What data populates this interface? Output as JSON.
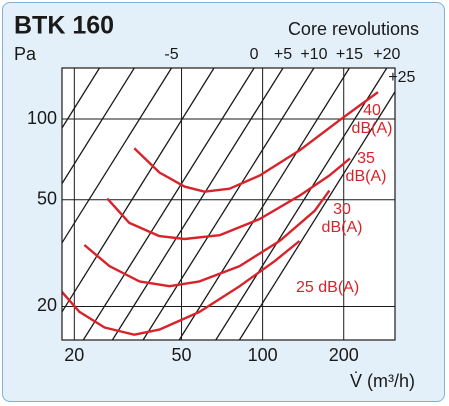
{
  "chart_data": {
    "type": "line",
    "title": "BTK 160",
    "y_label": "Pa",
    "x_label": "V̇ (m³/h)",
    "annotation": "Core revolutions",
    "log_x": true,
    "log_y": true,
    "grid": true,
    "xlim": [
      18,
      310
    ],
    "ylim": [
      15,
      155
    ],
    "xticks": [
      20,
      50,
      100,
      200
    ],
    "yticks": [
      20,
      50,
      100
    ],
    "series": [
      {
        "name": "40 dB(A)",
        "color": "#d8232a",
        "x": [
          33.4,
          41.4,
          51.3,
          60.9,
          75.4,
          97.5,
          137,
          193,
          268
        ],
        "values": [
          77.8,
          63.2,
          56.0,
          53.6,
          55.0,
          61.6,
          76.4,
          99,
          126
        ]
      },
      {
        "name": "35 dB(A)",
        "color": "#d8232a",
        "x": [
          26.5,
          32.0,
          41.4,
          51.3,
          69.2,
          97.5,
          137,
          177,
          211
        ],
        "values": [
          50.5,
          41.0,
          36.6,
          35.7,
          36.9,
          42.4,
          51.8,
          61.6,
          71.3
        ]
      },
      {
        "name": "30 dB(A)",
        "color": "#d8232a",
        "x": [
          21.8,
          27.0,
          34.9,
          45.1,
          58.3,
          82.1,
          115.6,
          156,
          177
        ],
        "values": [
          33.9,
          28.3,
          24.8,
          23.8,
          24.8,
          28.3,
          35.1,
          45.5,
          54.1
        ]
      },
      {
        "name": "25 dB(A)",
        "color": "#d8232a",
        "x": [
          17.9,
          20.9,
          25.9,
          33.4,
          41.4,
          58.3,
          82.1,
          110.8,
          137
        ],
        "values": [
          22.8,
          19.1,
          16.7,
          15.7,
          16.4,
          19.1,
          23.8,
          29.5,
          35.1
        ]
      }
    ],
    "revolution_lines": [
      {
        "name": null,
        "color": "#1a1a1a",
        "x": [
          5.8,
          24.8
        ],
        "values": [
          15,
          155
        ]
      },
      {
        "name": null,
        "color": "#1a1a1a",
        "x": [
          7.8,
          33.4
        ],
        "values": [
          15,
          155
        ]
      },
      {
        "name": "-5",
        "color": "#1a1a1a",
        "x": [
          10.7,
          45.9
        ],
        "values": [
          15,
          155
        ]
      },
      {
        "name": null,
        "color": "#1a1a1a",
        "x": [
          15.5,
          66
        ],
        "values": [
          15,
          155
        ]
      },
      {
        "name": "0",
        "color": "#1a1a1a",
        "x": [
          21.6,
          93
        ],
        "values": [
          15,
          155
        ]
      },
      {
        "name": "+5",
        "color": "#1a1a1a",
        "x": [
          27.7,
          119
        ],
        "values": [
          15,
          155
        ]
      },
      {
        "name": "+10",
        "color": "#1a1a1a",
        "x": [
          36,
          155
        ],
        "values": [
          15,
          155
        ]
      },
      {
        "name": "+15",
        "color": "#1a1a1a",
        "x": [
          49,
          210
        ],
        "values": [
          15,
          155
        ]
      },
      {
        "name": "+20",
        "color": "#1a1a1a",
        "x": [
          67,
          289
        ],
        "values": [
          15,
          155
        ]
      },
      {
        "name": "+25",
        "color": "#1a1a1a",
        "x": [
          82,
          352
        ],
        "values": [
          15,
          155
        ]
      }
    ]
  }
}
